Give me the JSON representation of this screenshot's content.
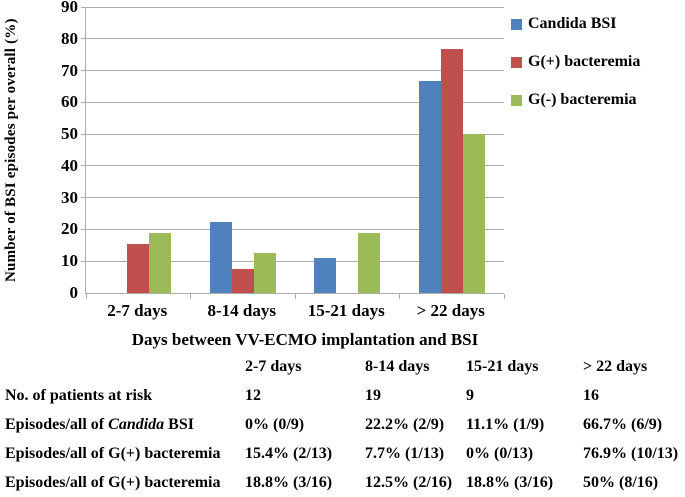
{
  "chart_data": {
    "type": "bar",
    "categories": [
      "2-7 days",
      "8-14 days",
      "15-21 days",
      "> 22 days"
    ],
    "series": [
      {
        "name": "Candida BSI",
        "color": "#4F81BD",
        "values": [
          0,
          22.2,
          11.1,
          66.7
        ]
      },
      {
        "name": "G(+) bacteremia",
        "color": "#C0504D",
        "values": [
          15.4,
          7.7,
          0,
          76.9
        ]
      },
      {
        "name": "G(-) bacteremia",
        "color": "#9BBB59",
        "values": [
          18.8,
          12.5,
          18.8,
          50
        ]
      }
    ],
    "xlabel": "Days between VV-ECMO implantation and BSI",
    "ylabel": "Number of BSI episodes per overall (%)",
    "ylim": [
      0,
      90
    ],
    "ytick_step": 10,
    "grid": true,
    "gridline_color": "#ACACAC",
    "legend_position": "right"
  },
  "table": {
    "headers": [
      "",
      "2-7 days",
      "8-14 days",
      "15-21 days",
      "> 22 days"
    ],
    "rows": [
      {
        "label_parts": [
          {
            "text": "No. of patients at risk",
            "italic": false
          }
        ],
        "values": [
          "12",
          "19",
          "9",
          "16"
        ]
      },
      {
        "label_parts": [
          {
            "text": "Episodes/all of ",
            "italic": false
          },
          {
            "text": "Candida",
            "italic": true
          },
          {
            "text": " BSI",
            "italic": false
          }
        ],
        "values": [
          "0% (0/9)",
          "22.2% (2/9)",
          "11.1% (1/9)",
          "66.7% (6/9)"
        ]
      },
      {
        "label_parts": [
          {
            "text": "Episodes/all of G(+) bacteremia",
            "italic": false
          }
        ],
        "values": [
          "15.4% (2/13)",
          "7.7% (1/13)",
          "0% (0/13)",
          "76.9% (10/13)"
        ]
      },
      {
        "label_parts": [
          {
            "text": "Episodes/all of G(+) bacteremia",
            "italic": false
          }
        ],
        "values": [
          "18.8% (3/16)",
          "12.5% (2/16)",
          "18.8% (3/16)",
          "50% (8/16)"
        ]
      }
    ]
  }
}
